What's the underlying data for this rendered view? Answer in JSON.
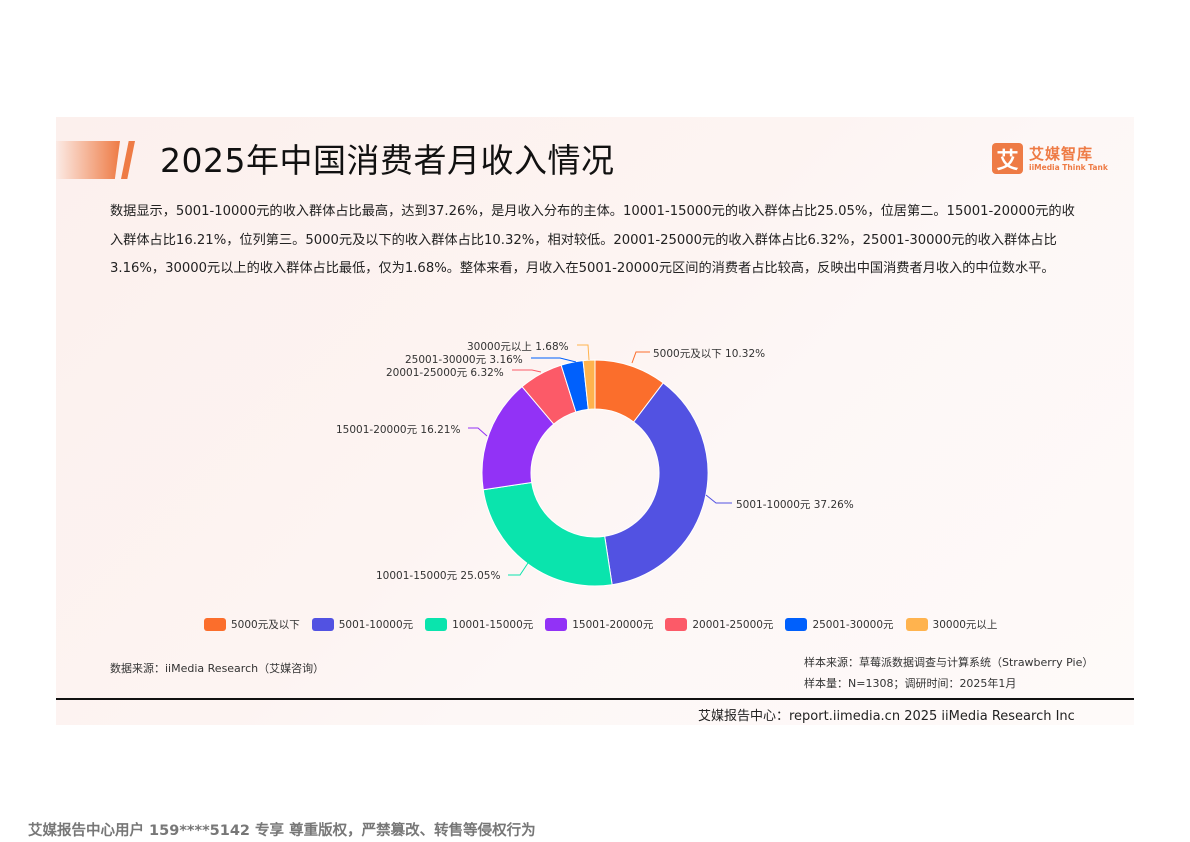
{
  "header": {
    "title": "2025年中国消费者月收入情况",
    "logo": {
      "mark": "艾",
      "name_cn": "艾媒智库",
      "name_en": "iiMedia Think Tank",
      "color": "#ee7b45"
    }
  },
  "description": "数据显示，5001-10000元的收入群体占比最高，达到37.26%，是月收入分布的主体。10001-15000元的收入群体占比25.05%，位居第二。15001-20000元的收入群体占比16.21%，位列第三。5000元及以下的收入群体占比10.32%，相对较低。20001-25000元的收入群体占比6.32%，25001-30000元的收入群体占比3.16%，30000元以上的收入群体占比最低，仅为1.68%。整体来看，月收入在5001-20000元区间的消费者占比较高，反映出中国消费者月收入的中位数水平。",
  "chart_data": {
    "type": "pie",
    "subtype": "donut",
    "title": "2025年中国消费者月收入情况",
    "categories": [
      "5000元及以下",
      "5001-10000元",
      "10001-15000元",
      "15001-20000元",
      "20001-25000元",
      "25001-30000元",
      "30000元以上"
    ],
    "values": [
      10.32,
      37.26,
      25.05,
      16.21,
      6.32,
      3.16,
      1.68
    ],
    "unit": "%",
    "colors": [
      "#fb6e2c",
      "#5252e2",
      "#0ae4ad",
      "#9232f6",
      "#fc5a68",
      "#0060fc",
      "#ffb34e"
    ],
    "labels": [
      "5000元及以下 10.32%",
      "5001-10000元 37.26%",
      "10001-15000元 25.05%",
      "15001-20000元 16.21%",
      "20001-25000元 6.32%",
      "25001-30000元 3.16%",
      "30000元以上 1.68%"
    ],
    "legend_position": "bottom",
    "start_angle": "12 o'clock, clockwise"
  },
  "legend": [
    {
      "label": "5000元及以下",
      "color": "#fb6e2c"
    },
    {
      "label": "5001-10000元",
      "color": "#5252e2"
    },
    {
      "label": "10001-15000元",
      "color": "#0ae4ad"
    },
    {
      "label": "15001-20000元",
      "color": "#9232f6"
    },
    {
      "label": "20001-25000元",
      "color": "#fc5a68"
    },
    {
      "label": "25001-30000元",
      "color": "#0060fc"
    },
    {
      "label": "30000元以上",
      "color": "#ffb34e"
    }
  ],
  "source": "数据来源：iiMedia Research（艾媒咨询）",
  "sample": {
    "line1": "样本来源：草莓派数据调查与计算系统（Strawberry Pie）",
    "line2": "样本量：N=1308；调研时间：2025年1月"
  },
  "footer": "艾媒报告中心：report.iimedia.cn 2025 iiMedia Research Inc",
  "watermark": "艾媒报告中心用户 159****5142 专享 尊重版权，严禁篡改、转售等侵权行为"
}
